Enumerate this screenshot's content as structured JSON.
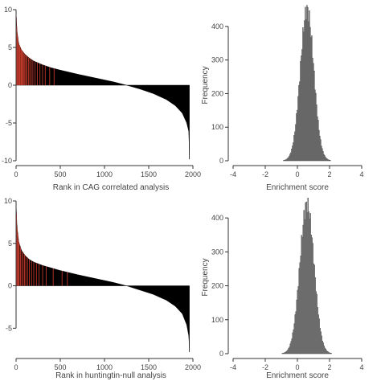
{
  "colors": {
    "axis": "#333333",
    "bar_fill": "#000000",
    "highlight": "#c0392b",
    "hist_fill": "#9a9a9a",
    "hist_stroke": "#333333"
  },
  "chart_data": [
    {
      "type": "bar",
      "title": "",
      "xlabel": "Rank in CAG correlated analysis",
      "ylabel": "",
      "n_ranks": 1960,
      "xlim": [
        0,
        2000
      ],
      "ylim": [
        -10,
        10
      ],
      "xticks": [
        0,
        500,
        1000,
        1500,
        2000
      ],
      "yticks": [
        -10,
        -5,
        0,
        5,
        10
      ],
      "profile_rank": [
        1,
        10,
        30,
        60,
        100,
        150,
        200,
        300,
        400,
        500,
        700,
        900,
        1100,
        1250,
        1400,
        1550,
        1700,
        1800,
        1880,
        1930,
        1955,
        1960
      ],
      "profile_value": [
        9.5,
        7.2,
        5.5,
        4.7,
        4.1,
        3.6,
        3.2,
        2.7,
        2.3,
        2.0,
        1.45,
        0.95,
        0.45,
        0.0,
        -0.5,
        -1.1,
        -1.9,
        -2.7,
        -3.7,
        -5.0,
        -6.2,
        -9.8
      ],
      "highlighted_ranks": [
        3,
        8,
        15,
        22,
        30,
        38,
        45,
        55,
        63,
        72,
        80,
        90,
        100,
        112,
        125,
        140,
        155,
        172,
        190,
        215,
        240,
        270,
        300,
        330,
        380,
        430
      ]
    },
    {
      "type": "bar",
      "title": "",
      "xlabel": "Enrichment score",
      "ylabel": "Frequency",
      "xlim": [
        -4,
        4
      ],
      "ylim": [
        0,
        450
      ],
      "xticks": [
        -4,
        -2,
        0,
        2,
        4
      ],
      "yticks": [
        0,
        100,
        200,
        300,
        400
      ],
      "mean": 0.6,
      "sd": 0.42,
      "bin_width": 0.05,
      "peak": 450
    },
    {
      "type": "bar",
      "title": "",
      "xlabel": "Rank in huntingtin-null analysis",
      "ylabel": "",
      "n_ranks": 1960,
      "xlim": [
        0,
        2000
      ],
      "ylim": [
        -8,
        10
      ],
      "xticks": [
        0,
        500,
        1000,
        1500,
        2000
      ],
      "yticks": [
        -5,
        0,
        5,
        10
      ],
      "profile_rank": [
        1,
        10,
        30,
        60,
        100,
        150,
        200,
        300,
        400,
        500,
        700,
        900,
        1100,
        1250,
        1400,
        1550,
        1700,
        1800,
        1880,
        1930,
        1955,
        1960
      ],
      "profile_value": [
        9.6,
        7.0,
        5.2,
        4.2,
        3.6,
        3.1,
        2.8,
        2.4,
        2.1,
        1.8,
        1.3,
        0.85,
        0.4,
        0.0,
        -0.5,
        -1.0,
        -1.7,
        -2.4,
        -3.3,
        -4.6,
        -6.0,
        -7.8
      ],
      "highlighted_ranks": [
        5,
        12,
        20,
        28,
        36,
        50,
        65,
        80,
        95,
        110,
        130,
        150,
        175,
        200,
        230,
        260,
        300,
        340,
        420,
        520,
        580
      ]
    },
    {
      "type": "bar",
      "title": "",
      "xlabel": "Enrichment score",
      "ylabel": "Frequency",
      "xlim": [
        -4,
        4
      ],
      "ylim": [
        0,
        450
      ],
      "xticks": [
        -4,
        -2,
        0,
        2,
        4
      ],
      "yticks": [
        0,
        100,
        200,
        300,
        400
      ],
      "mean": 0.6,
      "sd": 0.44,
      "bin_width": 0.05,
      "peak": 440
    }
  ]
}
